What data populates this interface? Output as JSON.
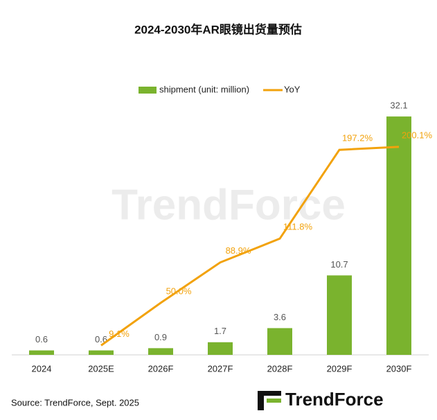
{
  "chart_data": {
    "type": "bar_line",
    "title": "2024-2030年AR眼镜出货量预估",
    "categories": [
      "2024",
      "2025E",
      "2026F",
      "2027F",
      "2028F",
      "2029F",
      "2030F"
    ],
    "series": [
      {
        "name": "shipment (unit: million)",
        "type": "bar",
        "color": "#7ab32e",
        "values": [
          0.6,
          0.6,
          0.9,
          1.7,
          3.6,
          10.7,
          32.1
        ]
      },
      {
        "name": "YoY",
        "type": "line",
        "axis": "y2",
        "color": "#f2a20c",
        "values": [
          null,
          9.1,
          50.0,
          88.9,
          111.8,
          197.2,
          200.1
        ],
        "value_labels": [
          null,
          "9.1%",
          "50.0%",
          "88.9%",
          "111.8%",
          "197.2%",
          "200.1%"
        ]
      }
    ],
    "ylim": [
      0,
      35
    ],
    "y2lim": [
      0,
      250
    ],
    "legend": "top",
    "source": "Source: TrendForce, Sept. 2025",
    "watermark": "TrendForce",
    "logo": "TrendForce"
  }
}
